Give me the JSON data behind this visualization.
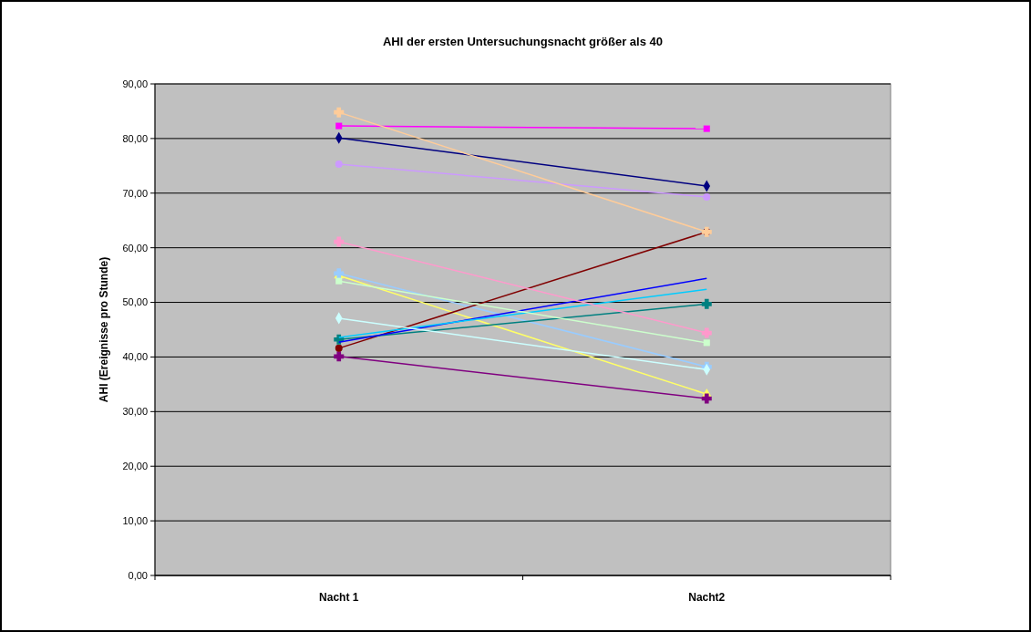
{
  "chart_data": {
    "type": "line",
    "title": "AHI der ersten Untersuchungsnacht größer als 40",
    "ylabel": "AHI (Ereignisse pro Stunde)",
    "categories": [
      "Nacht 1",
      "Nacht2"
    ],
    "ylim": [
      0,
      90
    ],
    "yticks": [
      {
        "value": 0,
        "label": "0,00"
      },
      {
        "value": 10,
        "label": "10,00"
      },
      {
        "value": 20,
        "label": "20,00"
      },
      {
        "value": 30,
        "label": "30,00"
      },
      {
        "value": 40,
        "label": "40,00"
      },
      {
        "value": 50,
        "label": "50,00"
      },
      {
        "value": 60,
        "label": "60,00"
      },
      {
        "value": 70,
        "label": "70,00"
      },
      {
        "value": 80,
        "label": "80,00"
      },
      {
        "value": 90,
        "label": "90,00"
      }
    ],
    "grid": "y",
    "series": [
      {
        "color": "#000080",
        "marker": "diamond",
        "values": [
          80.1,
          71.3
        ]
      },
      {
        "color": "#ff00ff",
        "marker": "square",
        "values": [
          82.3,
          81.8
        ]
      },
      {
        "color": "#ffff66",
        "marker": "triangle",
        "values": [
          54.9,
          33.2
        ]
      },
      {
        "color": "#99ccff",
        "marker": "cross",
        "values": [
          55.3,
          38.2
        ]
      },
      {
        "color": "#800080",
        "marker": "cross",
        "values": [
          40.1,
          32.4
        ]
      },
      {
        "color": "#800000",
        "marker": "circle",
        "values": [
          41.6,
          62.9
        ]
      },
      {
        "color": "#008080",
        "marker": "cross",
        "values": [
          43.2,
          49.7
        ]
      },
      {
        "color": "#0000ff",
        "marker": "none",
        "values": [
          42.7,
          54.4
        ]
      },
      {
        "color": "#00ccff",
        "marker": "none",
        "values": [
          43.6,
          52.4
        ]
      },
      {
        "color": "#ccffff",
        "marker": "diamond",
        "values": [
          47.1,
          37.7
        ]
      },
      {
        "color": "#ccffcc",
        "marker": "square",
        "values": [
          53.9,
          42.6
        ]
      },
      {
        "color": "#ff99cc",
        "marker": "cross",
        "values": [
          61.1,
          44.4
        ]
      },
      {
        "color": "#cc99ff",
        "marker": "circle",
        "values": [
          75.3,
          69.3
        ]
      },
      {
        "color": "#ffcc99",
        "marker": "cross",
        "values": [
          84.8,
          62.9
        ]
      }
    ]
  }
}
